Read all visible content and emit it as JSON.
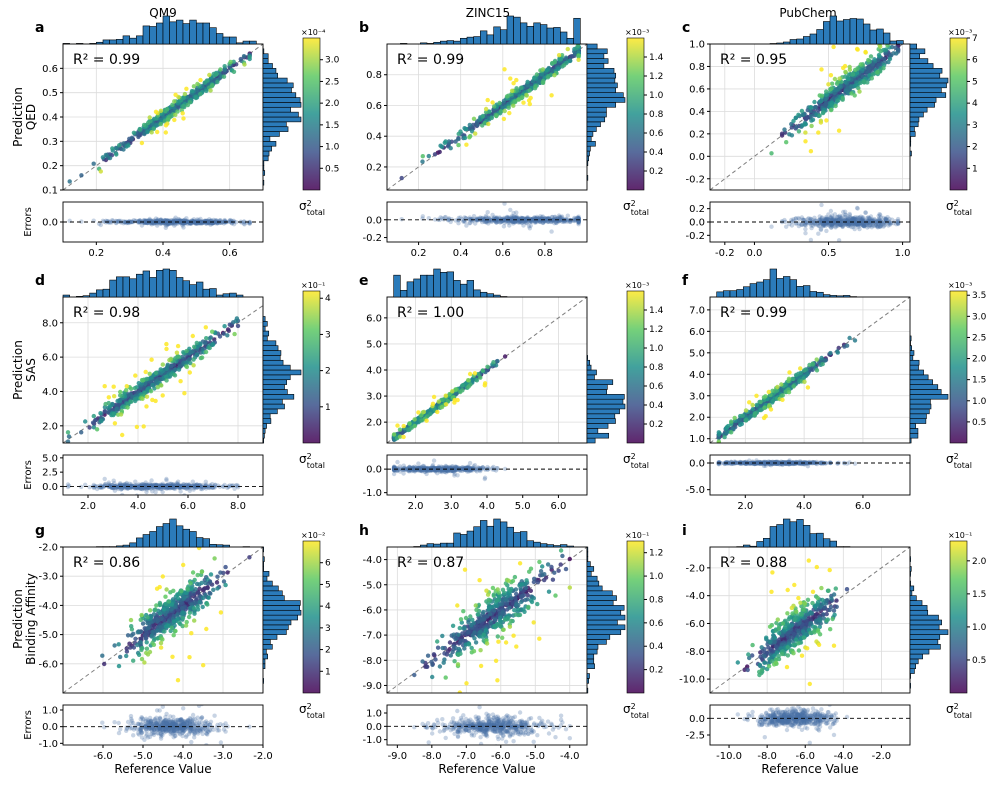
{
  "colors": {
    "hist_fill": "#2b7bba",
    "hist_edge": "#000000",
    "residual_points": "#4a6fa5",
    "diagonal": "#808080",
    "colormap": [
      "#440154",
      "#3b528b",
      "#21918c",
      "#5ec962",
      "#fde725"
    ]
  },
  "labels": {
    "y_prefix": "Prediction",
    "residual_ylabel": "Errors",
    "xlabel": "Reference Value",
    "cb_label_main": "σ",
    "cb_label_sup": "2",
    "cb_label_sub": "total"
  },
  "columns": [
    "QM9",
    "ZINC15",
    "PubChem"
  ],
  "rows": [
    "QED",
    "SAS",
    "Binding Affinity"
  ],
  "chart_data": [
    {
      "type": "scatter",
      "panel": "a",
      "title": "QM9",
      "ylabel": "QED",
      "r2": "R² = 0.99",
      "r2_value": 0.99,
      "xlim": [
        0.1,
        0.7
      ],
      "ylim": [
        0.1,
        0.7
      ],
      "yticks": [
        "0.1",
        "0.2",
        "0.3",
        "0.4",
        "0.5",
        "0.6"
      ],
      "xticks": [
        "0.2",
        "0.4",
        "0.6"
      ],
      "res_ylim": [
        -0.2,
        0.2
      ],
      "res_yticks": [
        "0.0"
      ],
      "cb_range": [
        0.0,
        3.5
      ],
      "cb_ticks": [
        "0.5",
        "1.0",
        "1.5",
        "2.0",
        "2.5",
        "3.0"
      ],
      "cb_scale": "×10⁻⁴",
      "x_center": 0.44,
      "x_spread": 0.1,
      "x_min": 0.12,
      "x_max": 0.66,
      "noise": 0.012,
      "err_spread": 0.02
    },
    {
      "type": "scatter",
      "panel": "b",
      "title": "ZINC15",
      "ylabel": "",
      "r2": "R² = 0.99",
      "r2_value": 0.99,
      "xlim": [
        0.05,
        1.0
      ],
      "ylim": [
        0.05,
        1.0
      ],
      "yticks": [
        "0.2",
        "0.4",
        "0.6",
        "0.8"
      ],
      "xticks": [
        "0.2",
        "0.4",
        "0.6",
        "0.8"
      ],
      "res_ylim": [
        -0.25,
        0.2
      ],
      "res_yticks": [
        "0.0",
        "-0.2"
      ],
      "cb_range": [
        0.0,
        1.6
      ],
      "cb_ticks": [
        "0.2",
        "0.4",
        "0.6",
        "0.8",
        "1.0",
        "1.2",
        "1.4"
      ],
      "cb_scale": "×10⁻³",
      "x_center": 0.7,
      "x_spread": 0.16,
      "x_min": 0.12,
      "x_max": 0.96,
      "noise": 0.02,
      "err_spread": 0.03
    },
    {
      "type": "scatter",
      "panel": "c",
      "title": "PubChem",
      "ylabel": "",
      "r2": "R² = 0.95",
      "r2_value": 0.95,
      "xlim": [
        -0.3,
        1.05
      ],
      "ylim": [
        -0.3,
        1.0
      ],
      "yticks": [
        "-0.2",
        "0.0",
        "0.2",
        "0.4",
        "0.6",
        "0.8",
        "1.0"
      ],
      "xticks": [
        "-0.2",
        "0.0",
        "0.5",
        "1.0"
      ],
      "res_ylim": [
        -0.3,
        0.3
      ],
      "res_yticks": [
        "0.2",
        "0.0",
        "-0.2"
      ],
      "cb_range": [
        0.0,
        7.0
      ],
      "cb_ticks": [
        "1",
        "2",
        "3",
        "4",
        "5",
        "6",
        "7"
      ],
      "cb_scale": "×10⁻³",
      "x_center": 0.62,
      "x_spread": 0.17,
      "x_min": 0.05,
      "x_max": 0.97,
      "noise": 0.05,
      "err_spread": 0.04
    },
    {
      "type": "scatter",
      "panel": "d",
      "title": "",
      "ylabel": "SAS",
      "r2": "R² = 0.98",
      "r2_value": 0.98,
      "xlim": [
        1.0,
        9.0
      ],
      "ylim": [
        1.0,
        9.5
      ],
      "yticks": [
        "2.0",
        "4.0",
        "6.0",
        "8.0"
      ],
      "xticks": [
        "2.0",
        "4.0",
        "6.0",
        "8.0"
      ],
      "res_ylim": [
        -1.5,
        5.5
      ],
      "res_yticks": [
        "5.0",
        "2.5",
        "0.0"
      ],
      "cb_range": [
        0.0,
        4.2
      ],
      "cb_ticks": [
        "1",
        "2",
        "3",
        "4"
      ],
      "cb_scale": "×10⁻¹",
      "x_center": 4.8,
      "x_spread": 1.3,
      "x_min": 1.2,
      "x_max": 8.0,
      "noise": 0.25,
      "err_spread": 0.2
    },
    {
      "type": "scatter",
      "panel": "e",
      "title": "",
      "ylabel": "",
      "r2": "R² = 1.00",
      "r2_value": 1.0,
      "xlim": [
        1.2,
        6.8
      ],
      "ylim": [
        1.2,
        6.8
      ],
      "yticks": [
        "2.0",
        "3.0",
        "4.0",
        "5.0",
        "6.0"
      ],
      "xticks": [
        "2.0",
        "3.0",
        "4.0",
        "5.0",
        "6.0"
      ],
      "res_ylim": [
        -1.1,
        0.6
      ],
      "res_yticks": [
        "0.0",
        "-1.0"
      ],
      "cb_range": [
        0.0,
        1.6
      ],
      "cb_ticks": [
        "0.2",
        "0.4",
        "0.6",
        "0.8",
        "1.0",
        "1.2",
        "1.4"
      ],
      "cb_scale": "×10⁻³",
      "x_center": 2.6,
      "x_spread": 0.7,
      "x_min": 1.4,
      "x_max": 6.4,
      "noise": 0.06,
      "err_spread": 0.06
    },
    {
      "type": "scatter",
      "panel": "f",
      "title": "",
      "ylabel": "",
      "r2": "R² = 0.99",
      "r2_value": 0.99,
      "xlim": [
        0.8,
        7.6
      ],
      "ylim": [
        0.8,
        7.6
      ],
      "yticks": [
        "1.0",
        "2.0",
        "3.0",
        "4.0",
        "5.0",
        "6.0",
        "7.0"
      ],
      "xticks": [
        "2.0",
        "4.0",
        "6.0"
      ],
      "res_ylim": [
        -6.0,
        1.5
      ],
      "res_yticks": [
        "0.0",
        "-5.0"
      ],
      "cb_range": [
        0.0,
        3.6
      ],
      "cb_ticks": [
        "0.5",
        "1.0",
        "1.5",
        "2.0",
        "2.5",
        "3.0",
        "3.5"
      ],
      "cb_scale": "×10⁻³",
      "x_center": 3.0,
      "x_spread": 0.9,
      "x_min": 1.1,
      "x_max": 7.1,
      "noise": 0.12,
      "err_spread": 0.1
    },
    {
      "type": "scatter",
      "panel": "g",
      "title": "",
      "ylabel": "Binding Affinity",
      "r2": "R² = 0.86",
      "r2_value": 0.86,
      "xlim": [
        -7.0,
        -2.0
      ],
      "ylim": [
        -7.0,
        -2.0
      ],
      "yticks": [
        "-6.0",
        "-5.0",
        "-4.0",
        "-3.0",
        "-2.0"
      ],
      "xticks": [
        "-6.0",
        "-5.0",
        "-4.0",
        "-3.0",
        "-2.0"
      ],
      "res_ylim": [
        -1.1,
        1.3
      ],
      "res_yticks": [
        "1.0",
        "0.0",
        "-1.0"
      ],
      "cb_range": [
        0.0,
        7.0
      ],
      "cb_ticks": [
        "1",
        "2",
        "3",
        "4",
        "5",
        "6"
      ],
      "cb_scale": "×10⁻²",
      "x_center": -4.3,
      "x_spread": 0.55,
      "x_min": -6.5,
      "x_max": -2.2,
      "noise": 0.32,
      "err_spread": 0.3
    },
    {
      "type": "scatter",
      "panel": "h",
      "title": "",
      "ylabel": "",
      "r2": "R² = 0.87",
      "r2_value": 0.87,
      "xlim": [
        -9.3,
        -3.5
      ],
      "ylim": [
        -9.3,
        -3.5
      ],
      "yticks": [
        "-9.0",
        "-8.0",
        "-7.0",
        "-6.0",
        "-5.0",
        "-4.0"
      ],
      "xticks": [
        "-9.0",
        "-8.0",
        "-7.0",
        "-6.0",
        "-5.0",
        "-4.0"
      ],
      "res_ylim": [
        -1.4,
        1.6
      ],
      "res_yticks": [
        "1.0",
        "0.0",
        "-1.0"
      ],
      "cb_range": [
        0.0,
        1.3
      ],
      "cb_ticks": [
        "0.2",
        "0.4",
        "0.6",
        "0.8",
        "1.0",
        "1.2"
      ],
      "cb_scale": "×10⁻¹",
      "x_center": -6.3,
      "x_spread": 0.8,
      "x_min": -9.0,
      "x_max": -4.0,
      "noise": 0.4,
      "err_spread": 0.35
    },
    {
      "type": "scatter",
      "panel": "i",
      "title": "",
      "ylabel": "",
      "r2": "R² = 0.88",
      "r2_value": 0.88,
      "xlim": [
        -11.0,
        -0.5
      ],
      "ylim": [
        -11.0,
        -0.5
      ],
      "yticks": [
        "-10.0",
        "-8.0",
        "-6.0",
        "-4.0",
        "-2.0"
      ],
      "xticks": [
        "-10.0",
        "-8.0",
        "-6.0",
        "-4.0",
        "-2.0"
      ],
      "res_ylim": [
        -4.0,
        2.0
      ],
      "res_yticks": [
        "0.0",
        "-2.5"
      ],
      "cb_range": [
        0.0,
        2.3
      ],
      "cb_ticks": [
        "0.5",
        "1.0",
        "1.5",
        "2.0"
      ],
      "cb_scale": "×10⁻¹",
      "x_center": -6.6,
      "x_spread": 1.0,
      "x_min": -10.5,
      "x_max": -1.2,
      "noise": 0.65,
      "err_spread": 0.5
    }
  ]
}
